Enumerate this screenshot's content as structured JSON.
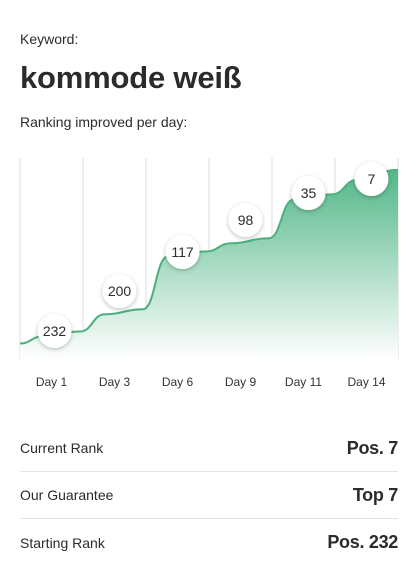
{
  "header": {
    "keyword_label": "Keyword:",
    "keyword": "kommode weiß",
    "subtitle": "Ranking improved per day:"
  },
  "chart_data": {
    "type": "area",
    "x_ticks": [
      "Day 1",
      "Day 3",
      "Day 6",
      "Day 9",
      "Day 11",
      "Day 14"
    ],
    "points": [
      {
        "x_index": 0,
        "rank": 232,
        "label": "232"
      },
      {
        "x_index": 1,
        "rank": 200,
        "label": "200"
      },
      {
        "x_index": 2,
        "rank": 117,
        "label": "117"
      },
      {
        "x_index": 3,
        "rank": 98,
        "label": "98"
      },
      {
        "x_index": 4,
        "rank": 35,
        "label": "35"
      },
      {
        "x_index": 5,
        "rank": 7,
        "label": "7"
      }
    ],
    "y_inverted": true,
    "grid": "vertical",
    "colors": {
      "line": "#4caf7d",
      "fill_top": "#52b788",
      "fill_bottom": "#ffffff"
    }
  },
  "stats": [
    {
      "label": "Current Rank",
      "value": "Pos. 7"
    },
    {
      "label": "Our Guarantee",
      "value": "Top 7"
    },
    {
      "label": "Starting Rank",
      "value": "Pos. 232"
    }
  ]
}
